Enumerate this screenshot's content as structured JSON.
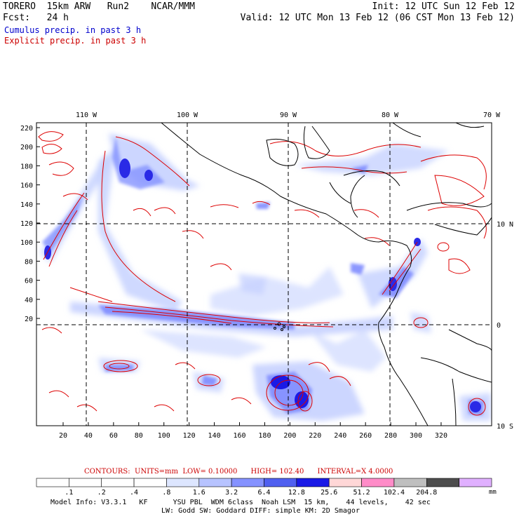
{
  "header": {
    "model": "TORERO",
    "resolution": "15km ARW",
    "run": "Run2",
    "org": "NCAR/MMM",
    "init": "Init: 12 UTC Sun 12 Feb 12",
    "fcst_label": "Fcst:",
    "fcst_value": "24 h",
    "valid": "Valid: 12 UTC Mon 13 Feb 12 (06 CST Mon 13 Feb 12)",
    "field1": "Cumulus precip. in past 3 h",
    "field2": "Explicit precip. in past 3 h"
  },
  "colors": {
    "field1": "#0000cc",
    "field2": "#cc0000",
    "contour": "#dd0000"
  },
  "axes": {
    "top_lon": [
      "110 W",
      "100 W",
      "90 W",
      "80 W",
      "70 W"
    ],
    "right_lat": [
      "10 N",
      "0",
      "10 S"
    ],
    "left_ticks": [
      "220",
      "200",
      "180",
      "160",
      "140",
      "120",
      "100",
      "80",
      "60",
      "40",
      "20"
    ],
    "bottom_ticks": [
      "20",
      "40",
      "60",
      "80",
      "100",
      "120",
      "140",
      "160",
      "180",
      "200",
      "220",
      "240",
      "260",
      "280",
      "300",
      "320"
    ]
  },
  "contours_info": {
    "label": "CONTOURS:",
    "units": "UNITS=mm",
    "low": "LOW= 0.10000",
    "high": "HIGH= 102.40",
    "interval": "INTERVAL=X 4.0000"
  },
  "colorbar": {
    "thresholds": [
      ".1",
      ".2",
      ".4",
      ".8",
      "1.6",
      "3.2",
      "6.4",
      "12.8",
      "25.6",
      "51.2",
      "102.4",
      "204.8"
    ],
    "colors": [
      "#ffffff",
      "#ffffff",
      "#ffffff",
      "#ffffff",
      "#dde6ff",
      "#b7c3ff",
      "#8592ff",
      "#5060f0",
      "#1a1ae6",
      "#ffd7d7",
      "#ff8cc8",
      "#bfbfbf",
      "#4d4d4d",
      "#e0b0ff"
    ],
    "unit": "mm"
  },
  "footer": {
    "line1": "Model Info: V3.3.1   KF      YSU PBL  WDM 6class  Noah LSM  15 km,    44 levels,    42 sec",
    "line2": "LW: Godd SW: Goddard DIFF: simple KM: 2D Smagor"
  }
}
